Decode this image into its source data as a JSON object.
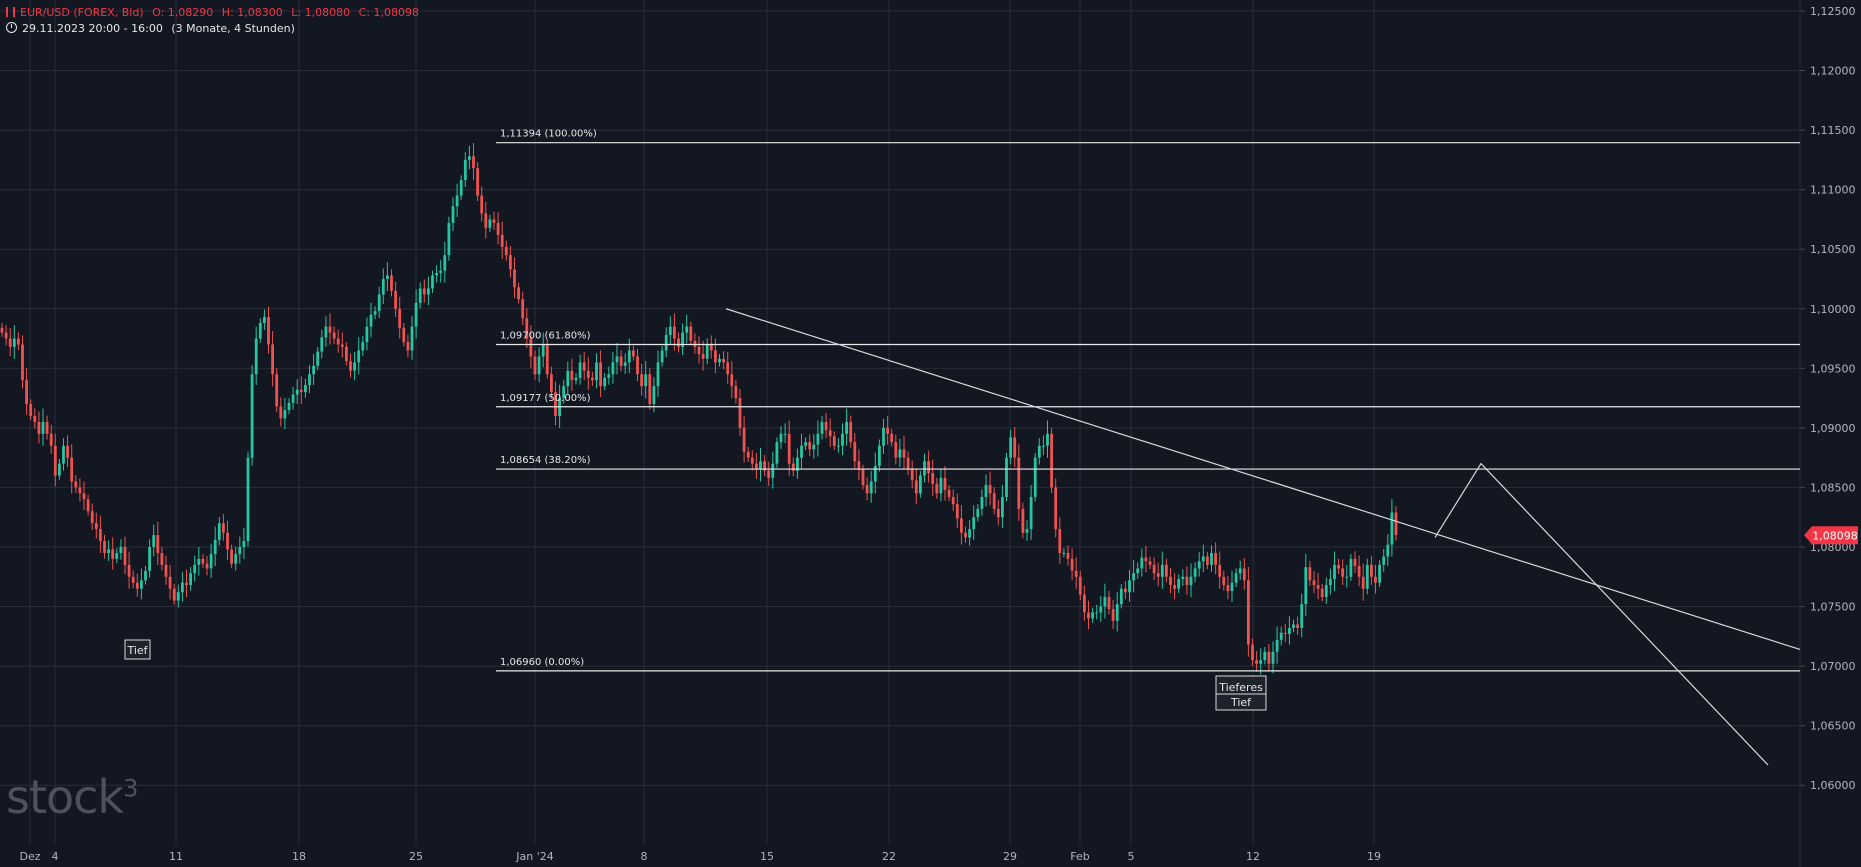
{
  "header": {
    "symbol": "EUR/USD (FOREX, Bid)",
    "open": "O: 1,08290",
    "high": "H: 1,08300",
    "low": "L: 1,08080",
    "close": "C: 1,08098",
    "period": "29.11.2023 20:00 - 16:00",
    "range": "(3 Monate, 4 Stunden)"
  },
  "watermark": "stock",
  "watermark_sup": "3",
  "colors": {
    "background": "#131722",
    "grid": "#2a2e39",
    "up": "#26c6a2",
    "down": "#ef5350",
    "line": "#d9d9d9",
    "text": "#b2b5be",
    "price_tag": "#f23645"
  },
  "chart_data": {
    "type": "candlestick",
    "ylim": [
      1.0575,
      1.1255
    ],
    "y_ticks": [
      "1,12500",
      "1,12000",
      "1,11500",
      "1,11000",
      "1,10500",
      "1,10000",
      "1,09500",
      "1,09000",
      "1,08500",
      "1,08000",
      "1,07500",
      "1,07000",
      "1,06500",
      "1,06000"
    ],
    "x_ticks": [
      "Dez",
      "4",
      "11",
      "18",
      "25",
      "Jan '24",
      "8",
      "15",
      "22",
      "29",
      "Feb",
      "5",
      "12",
      "19"
    ],
    "last_price": "1,08098",
    "fibonacci": [
      {
        "price": 1.11394,
        "label": "1,11394 (100.00%)"
      },
      {
        "price": 1.097,
        "label": "1,09700 (61.80%)"
      },
      {
        "price": 1.09177,
        "label": "1,09177 (50.00%)"
      },
      {
        "price": 1.08654,
        "label": "1,08654 (38.20%)"
      },
      {
        "price": 1.0696,
        "label": "1,06960 (0.00%)"
      }
    ],
    "annotations": [
      {
        "text": "Tief"
      },
      {
        "text": "Tieferes Tief"
      }
    ],
    "series": [
      {
        "values": [
          1.098,
          1.0975,
          1.0968,
          1.0975,
          1.097,
          1.094,
          1.092,
          1.091,
          1.0905,
          1.0895,
          1.0905,
          1.0895,
          1.0885,
          1.086,
          1.087,
          1.0885,
          1.0875,
          1.0855,
          1.085,
          1.0845,
          1.084,
          1.083,
          1.082,
          1.0815,
          1.0805,
          1.0795,
          1.0798,
          1.079,
          1.0795,
          1.08,
          1.0785,
          1.0775,
          1.077,
          1.0765,
          1.0772,
          1.078,
          1.08,
          1.081,
          1.0795,
          1.0785,
          1.0775,
          1.0765,
          1.0755,
          1.0762,
          1.077,
          1.0768,
          1.0778,
          1.0785,
          1.079,
          1.0786,
          1.0782,
          1.0794,
          1.0806,
          1.082,
          1.0812,
          1.0798,
          1.0786,
          1.0794,
          1.08,
          1.0805,
          1.0875,
          1.0945,
          1.0975,
          1.0988,
          1.0993,
          1.097,
          1.0945,
          1.0918,
          1.0908,
          1.0915,
          1.0921,
          1.0928,
          1.0932,
          1.093,
          1.0936,
          1.0945,
          1.0952,
          1.0964,
          1.0976,
          1.0985,
          1.098,
          1.0975,
          1.097,
          1.0968,
          1.0956,
          1.0948,
          1.0955,
          1.0965,
          1.0972,
          1.0985,
          1.0995,
          1.0998,
          1.1012,
          1.1025,
          1.1028,
          1.1015,
          1.1,
          1.0984,
          1.0972,
          1.0965,
          1.0985,
          1.1005,
          1.1017,
          1.1012,
          1.1017,
          1.1028,
          1.103,
          1.1032,
          1.1045,
          1.1072,
          1.1086,
          1.1095,
          1.1108,
          1.1125,
          1.1128,
          1.1118,
          1.1095,
          1.108,
          1.1068,
          1.1075,
          1.1072,
          1.1062,
          1.1052,
          1.1045,
          1.1033,
          1.1018,
          1.1008,
          1.0992,
          1.0975,
          1.096,
          1.0945,
          1.096,
          1.097,
          1.0945,
          1.093,
          1.091,
          1.0925,
          1.0935,
          1.0948,
          1.094,
          1.0942,
          1.0955,
          1.0948,
          1.0942,
          1.094,
          1.0955,
          1.0935,
          1.0942,
          1.0945,
          1.0955,
          1.096,
          1.0952,
          1.0955,
          1.0965,
          1.096,
          1.0945,
          1.0935,
          1.0945,
          1.092,
          1.0935,
          1.0955,
          1.0965,
          1.0978,
          1.0985,
          1.0975,
          1.0968,
          1.098,
          1.0985,
          1.0973,
          1.0968,
          1.0962,
          1.0958,
          1.097,
          1.0965,
          1.0955,
          1.0958,
          1.0955,
          1.0945,
          1.0935,
          1.0925,
          1.09,
          1.088,
          1.0875,
          1.087,
          1.0865,
          1.0872,
          1.0864,
          1.0858,
          1.087,
          1.0888,
          1.0895,
          1.0895,
          1.087,
          1.0864,
          1.0875,
          1.0885,
          1.0888,
          1.0882,
          1.0886,
          1.0895,
          1.0905,
          1.0898,
          1.0893,
          1.0885,
          1.0885,
          1.0895,
          1.0905,
          1.0888,
          1.0872,
          1.0865,
          1.0852,
          1.0845,
          1.0855,
          1.0868,
          1.0885,
          1.09,
          1.0895,
          1.0888,
          1.0875,
          1.0882,
          1.0875,
          1.0865,
          1.0856,
          1.0845,
          1.086,
          1.0872,
          1.0862,
          1.0853,
          1.0845,
          1.0858,
          1.0848,
          1.0842,
          1.0836,
          1.0824,
          1.0812,
          1.0808,
          1.0815,
          1.0825,
          1.0832,
          1.0842,
          1.0852,
          1.0845,
          1.0832,
          1.0825,
          1.0842,
          1.0875,
          1.0892,
          1.0875,
          1.0832,
          1.0812,
          1.0815,
          1.0842,
          1.0875,
          1.0885,
          1.0885,
          1.0895,
          1.085,
          1.0815,
          1.0795,
          1.0795,
          1.079,
          1.078,
          1.0775,
          1.076,
          1.0745,
          1.074,
          1.0745,
          1.0745,
          1.075,
          1.0758,
          1.0748,
          1.0738,
          1.0752,
          1.0765,
          1.0762,
          1.0772,
          1.0778,
          1.0782,
          1.0791,
          1.0788,
          1.0785,
          1.0778,
          1.0775,
          1.0785,
          1.0775,
          1.0768,
          1.0765,
          1.0773,
          1.0775,
          1.0768,
          1.0775,
          1.0782,
          1.0788,
          1.0792,
          1.0785,
          1.0795,
          1.0785,
          1.0775,
          1.0768,
          1.0763,
          1.077,
          1.0778,
          1.0782,
          1.0772,
          1.0718,
          1.0705,
          1.0702,
          1.0705,
          1.0712,
          1.0702,
          1.0712,
          1.0722,
          1.0728,
          1.0727,
          1.0732,
          1.0735,
          1.0732,
          1.0752,
          1.0783,
          1.0772,
          1.0768,
          1.0765,
          1.0758,
          1.0768,
          1.0773,
          1.0785,
          1.0782,
          1.0775,
          1.0775,
          1.079,
          1.0784,
          1.0775,
          1.0765,
          1.0785,
          1.0775,
          1.077,
          1.0785,
          1.0792,
          1.0802,
          1.0829,
          1.081
        ]
      }
    ]
  }
}
